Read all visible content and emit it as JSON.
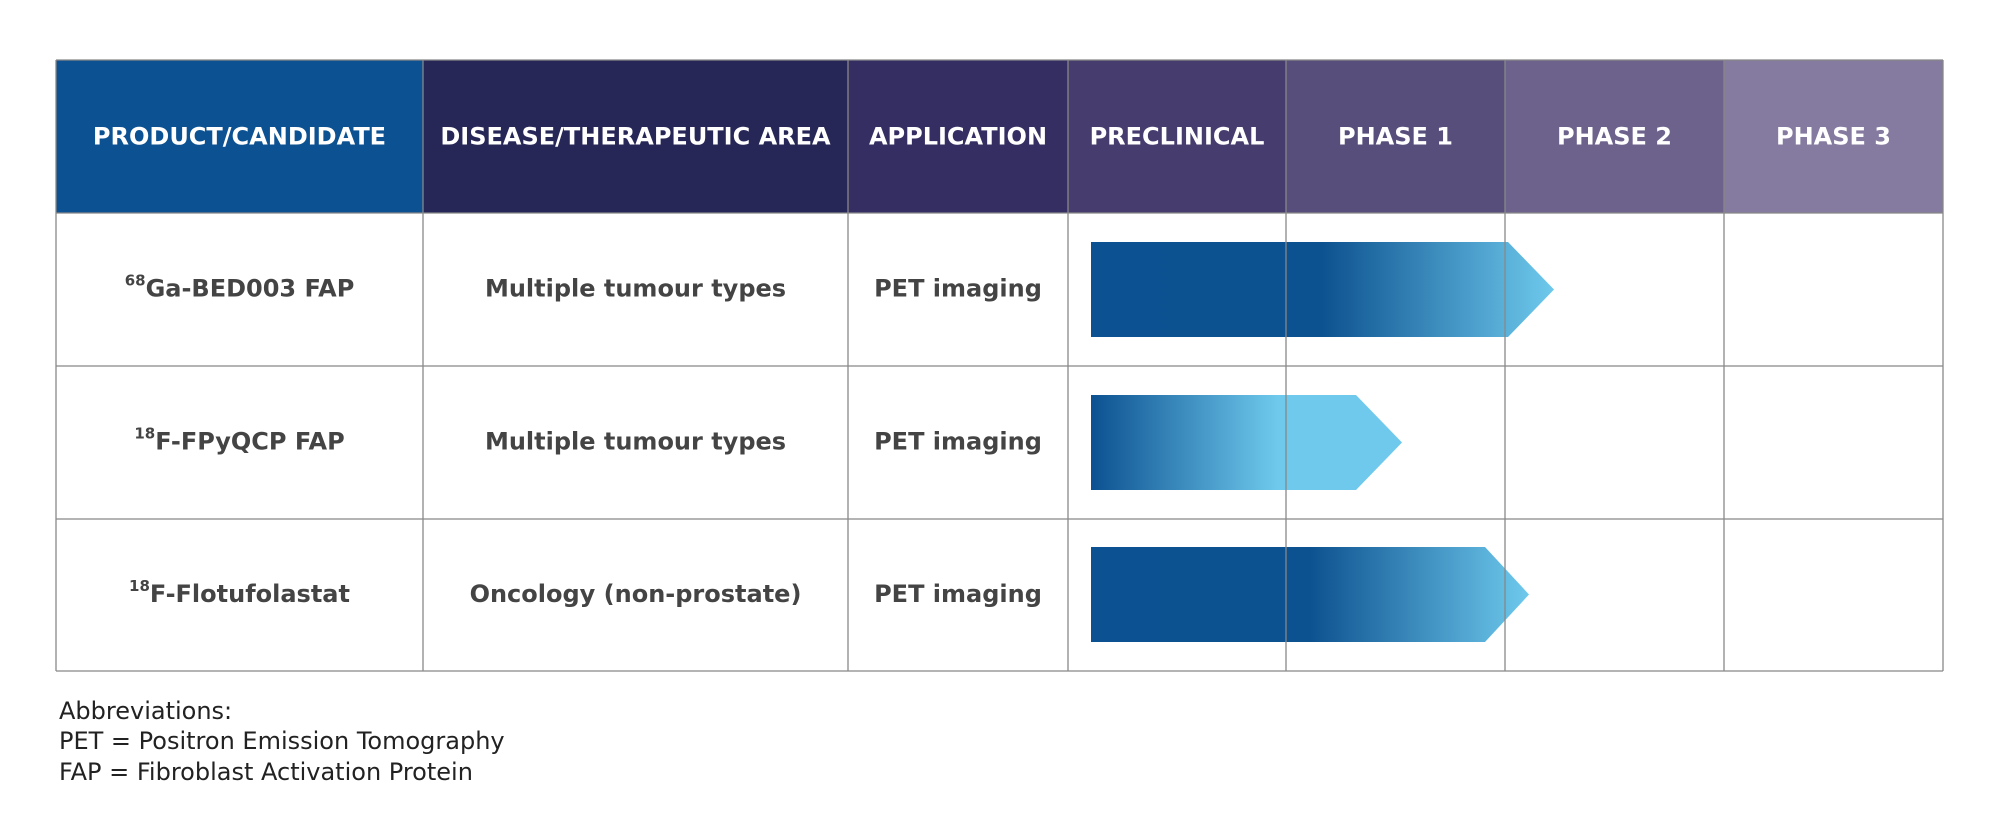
{
  "table": {
    "header": [
      "PRODUCT/CANDIDATE",
      "DISEASE/THERAPEUTIC AREA",
      "APPLICATION",
      "PRECLINICAL",
      "PHASE 1",
      "PHASE 2",
      "PHASE 3"
    ],
    "rows": [
      {
        "isotope": "68",
        "product": "Ga-BED003 FAP",
        "disease": "Multiple tumour types",
        "application": "PET imaging"
      },
      {
        "isotope": "18",
        "product": "F-FPyQCP FAP",
        "disease": "Multiple tumour types",
        "application": "PET imaging"
      },
      {
        "isotope": "18",
        "product": "F-Flotufolastat",
        "disease": "Oncology (non-prostate)",
        "application": "PET imaging"
      }
    ]
  },
  "abbreviations": {
    "title": "Abbreviations:",
    "lines": [
      "PET = Positron Emission Tomography",
      "FAP = Fibroblast Activation Protein"
    ]
  }
}
